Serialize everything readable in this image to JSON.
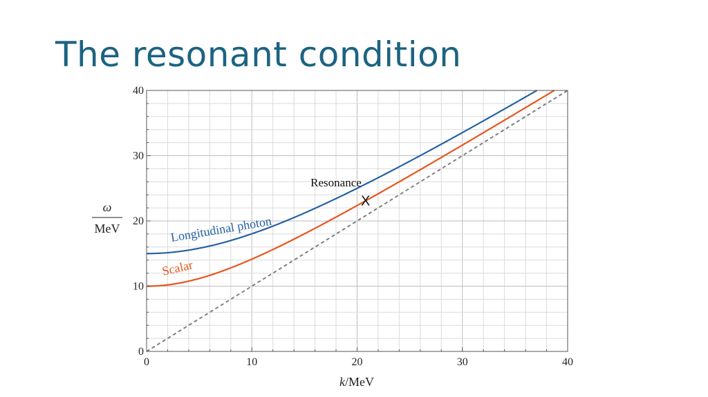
{
  "slide": {
    "title": "The resonant condition"
  },
  "chart_data": {
    "type": "line",
    "xlabel_var": "k",
    "xlabel_unit": "/MeV",
    "ylabel_num": "ω",
    "ylabel_den": "MeV",
    "xlim": [
      0,
      40
    ],
    "ylim": [
      0,
      40
    ],
    "x_ticks": [
      0,
      10,
      20,
      30,
      40
    ],
    "y_ticks": [
      0,
      10,
      20,
      30,
      40
    ],
    "grid": true,
    "colors": {
      "photon": "#2660a4",
      "scalar": "#e8541c",
      "light": "#7f7f7f"
    },
    "series": [
      {
        "name": "Longitudinal photon",
        "mass": 15,
        "x": [
          0,
          5,
          10,
          15,
          20,
          25,
          30,
          35,
          40
        ],
        "y": [
          15.0,
          15.8,
          18.0,
          21.2,
          25.0,
          29.2,
          33.5,
          38.1,
          42.7
        ]
      },
      {
        "name": "Scalar",
        "mass": 10,
        "x": [
          0,
          5,
          10,
          15,
          20,
          25,
          30,
          35,
          40
        ],
        "y": [
          10.0,
          11.2,
          14.1,
          18.0,
          22.4,
          27.0,
          31.6,
          36.4,
          41.2
        ]
      },
      {
        "name": "",
        "style": "dashed",
        "x": [
          0,
          40
        ],
        "y": [
          0,
          40
        ]
      }
    ],
    "annotations": [
      {
        "text": "Resonance",
        "marker": "X",
        "x": 20.8,
        "y": 23.0
      }
    ]
  }
}
